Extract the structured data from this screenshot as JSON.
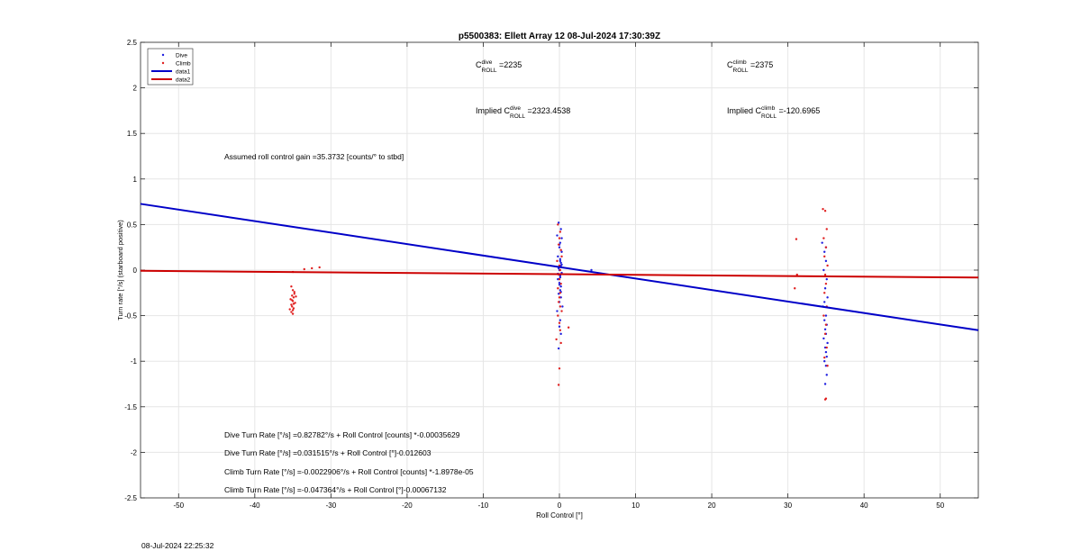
{
  "chart_data": {
    "type": "scatter",
    "title": "p5500383: Ellett Array 12 08-Jul-2024 17:30:39Z",
    "xlabel": "Roll Control [°]",
    "ylabel": "Turn rate [°/s] (starboard positive)",
    "xlim": [
      -55,
      55
    ],
    "ylim": [
      -2.5,
      2.5
    ],
    "xticks": [
      -50,
      -40,
      -30,
      -20,
      -10,
      0,
      10,
      20,
      30,
      40,
      50
    ],
    "yticks": [
      -2.5,
      -2,
      -1.5,
      -1,
      -0.5,
      0,
      0.5,
      1,
      1.5,
      2,
      2.5
    ],
    "grid": true,
    "legend_position": "top-left",
    "legend": [
      {
        "label": "Dive",
        "kind": "marker",
        "color": "#1f1fe0"
      },
      {
        "label": "Climb",
        "kind": "marker",
        "color": "#e01f1f"
      },
      {
        "label": "data1",
        "kind": "line",
        "color": "#0000c8"
      },
      {
        "label": "data2",
        "kind": "line",
        "color": "#cc0000"
      }
    ],
    "series": [
      {
        "name": "data1",
        "type": "line",
        "color": "#0000c8",
        "x": [
          -55,
          55
        ],
        "y": [
          0.727,
          -0.66
        ]
      },
      {
        "name": "data2",
        "type": "line",
        "color": "#cc0000",
        "x": [
          -55,
          55
        ],
        "y": [
          -0.008,
          -0.082
        ]
      },
      {
        "name": "Dive",
        "type": "scatter",
        "color": "#1f1fe0",
        "x": [
          -0.1,
          0.2,
          -0.3,
          0.1,
          0.0,
          0.3,
          -0.2,
          0.1,
          0.2,
          -0.1,
          0.0,
          0.3,
          0.1,
          -0.2,
          0.0,
          0.2,
          0.1,
          -0.1,
          0.2,
          0.0,
          0.4,
          -0.3,
          0.1,
          0.0,
          0.2,
          -0.1,
          0.3,
          0.0,
          0.1,
          0.2,
          -0.2,
          0.1,
          0.0,
          0.2,
          0.3,
          4.2,
          34.5,
          34.8,
          35.0,
          34.7,
          35.1,
          34.9,
          35.2,
          34.6,
          35.0,
          34.8,
          35.1,
          34.9,
          35.0,
          34.7,
          35.2,
          34.9,
          35.0,
          35.1,
          34.8,
          35.0,
          35.1,
          34.9,
          35.0,
          34.8
        ],
        "y": [
          0.52,
          0.45,
          0.38,
          0.3,
          0.25,
          0.2,
          0.15,
          0.1,
          0.05,
          0.02,
          0.0,
          -0.03,
          -0.06,
          -0.1,
          -0.14,
          -0.18,
          -0.22,
          -0.26,
          -0.3,
          -0.35,
          -0.4,
          -0.45,
          -0.55,
          -0.62,
          -0.7,
          -0.86,
          0.35,
          0.28,
          0.12,
          0.08,
          -0.04,
          -0.08,
          -0.16,
          -0.24,
          0.06,
          0.0,
          0.3,
          0.2,
          0.1,
          0.0,
          -0.1,
          -0.2,
          -0.3,
          -0.4,
          -0.5,
          -0.55,
          -0.6,
          -0.65,
          -0.7,
          -0.75,
          -0.8,
          -0.85,
          -0.9,
          -0.95,
          -1.0,
          -1.05,
          -1.15,
          -1.25,
          0.25,
          -0.35
        ]
      },
      {
        "name": "Climb",
        "type": "scatter",
        "color": "#e01f1f",
        "x": [
          -35.2,
          -35.0,
          -34.8,
          -35.1,
          -34.9,
          -35.3,
          -35.0,
          -34.7,
          -35.2,
          -35.1,
          -34.9,
          -35.0,
          -35.2,
          -34.8,
          -35.1,
          -34.9,
          -35.4,
          -35.0,
          -34.6,
          -35.0,
          -33.5,
          -32.5,
          -31.5,
          -0.2,
          0.1,
          0.0,
          -0.1,
          0.2,
          0.3,
          -0.3,
          0.0,
          0.1,
          -0.1,
          0.0,
          0.2,
          -0.2,
          0.1,
          0.0,
          -0.1,
          0.1,
          0.3,
          -0.2,
          0.0,
          0.1,
          -0.4,
          0.2,
          0.0,
          -0.1,
          1.2,
          31.1,
          31.2,
          30.9,
          34.6,
          34.9,
          35.1,
          34.7,
          35.0,
          34.8,
          35.2,
          34.9,
          35.0,
          34.8,
          35.1,
          34.7,
          35.0,
          34.9,
          35.1,
          34.8,
          35.2,
          35.0,
          34.9
        ],
        "y": [
          -0.18,
          -0.22,
          -0.26,
          -0.28,
          -0.3,
          -0.32,
          -0.34,
          -0.36,
          -0.38,
          -0.4,
          -0.42,
          -0.44,
          -0.46,
          -0.24,
          -0.33,
          -0.37,
          -0.43,
          -0.48,
          -0.29,
          -0.02,
          0.01,
          0.02,
          0.03,
          0.5,
          0.42,
          0.35,
          0.28,
          0.22,
          0.15,
          0.1,
          0.05,
          0.0,
          -0.05,
          -0.1,
          -0.15,
          -0.2,
          -0.25,
          -0.3,
          -0.35,
          -0.4,
          -0.45,
          -0.5,
          -0.58,
          -0.66,
          -0.76,
          -0.8,
          -1.08,
          -1.26,
          -0.63,
          0.34,
          -0.05,
          -0.2,
          0.67,
          0.65,
          0.45,
          0.35,
          0.25,
          0.15,
          0.05,
          -0.05,
          -0.15,
          -0.25,
          -0.4,
          -0.5,
          -0.6,
          -0.7,
          -0.85,
          -0.96,
          -1.05,
          -1.41,
          -1.42
        ]
      }
    ],
    "annotations": {
      "c_dive": {
        "prefix": "C",
        "sup": "dive",
        "sub": "ROLL",
        "suffix": " =2235"
      },
      "c_climb": {
        "prefix": "C",
        "sup": "climb",
        "sub": "ROLL",
        "suffix": " =2375"
      },
      "implied_dive": {
        "prefix": "Implied C",
        "sup": "dive",
        "sub": "ROLL",
        "suffix": " =2323.4538"
      },
      "implied_climb": {
        "prefix": "Implied C",
        "sup": "climb",
        "sub": "ROLL",
        "suffix": " =-120.6965"
      },
      "gain": "Assumed roll control gain =35.3732 [counts/° to stbd]",
      "eq1": "Dive Turn Rate [°/s] =0.82782°/s + Roll Control [counts] *-0.00035629",
      "eq2": "Dive Turn Rate [°/s] =0.031515°/s + Roll Control [°]-0.012603",
      "eq3": "Climb Turn Rate [°/s] =-0.0022906°/s + Roll Control [counts] *-1.8978e-05",
      "eq4": "Climb Turn Rate [°/s] =-0.047364°/s + Roll Control [°]-0.00067132"
    }
  },
  "footer_timestamp": "08-Jul-2024 22:25:32"
}
